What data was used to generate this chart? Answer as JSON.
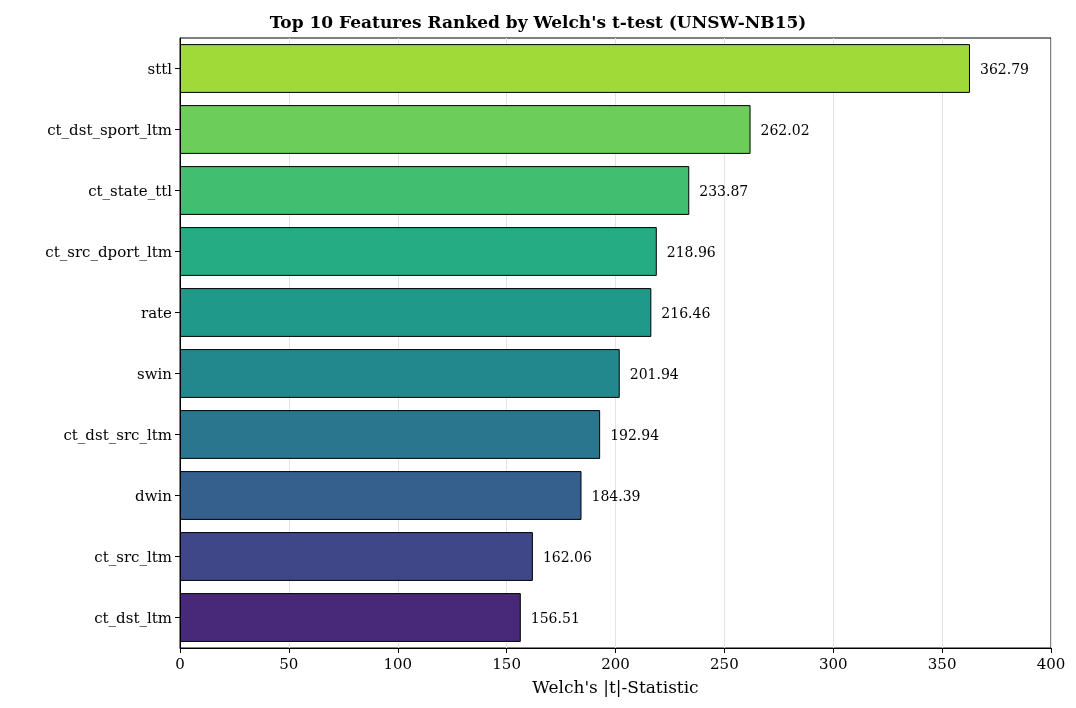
{
  "chart_data": {
    "type": "bar",
    "orientation": "horizontal",
    "title": "Top 10 Features Ranked by Welch's t-test (UNSW-NB15)",
    "xlabel": "Welch's |t|-Statistic",
    "categories": [
      "sttl",
      "ct_dst_sport_ltm",
      "ct_state_ttl",
      "ct_src_dport_ltm",
      "rate",
      "swin",
      "ct_dst_src_ltm",
      "dwin",
      "ct_src_ltm",
      "ct_dst_ltm"
    ],
    "values": [
      362.79,
      262.02,
      233.87,
      218.96,
      216.46,
      201.94,
      192.94,
      184.39,
      162.06,
      156.51
    ],
    "colors": [
      "#a0da39",
      "#6ccd5a",
      "#42be71",
      "#25ac82",
      "#1f9a8a",
      "#23888e",
      "#2a768e",
      "#35608d",
      "#3f4788",
      "#482878"
    ],
    "xlim": [
      0,
      400
    ],
    "xticks": [
      0,
      50,
      100,
      150,
      200,
      250,
      300,
      350,
      400
    ],
    "grid": "x",
    "data_labels": true
  }
}
